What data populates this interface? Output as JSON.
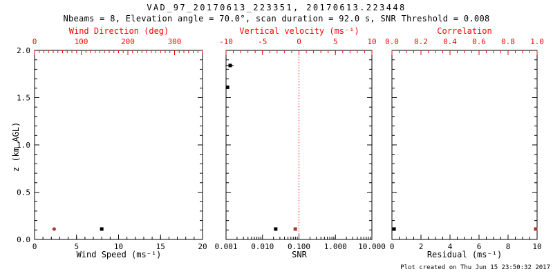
{
  "colors": {
    "axis_red": "#ff0000",
    "data_red": "#a93b2d",
    "black": "#000000",
    "background": "#ffffff"
  },
  "footer": {
    "created": "Plot created on Thu Jun 15 23:50:32 2017"
  },
  "chart_data": {
    "type": "scatter",
    "title": "VAD_97_20170613_223351, 20170613.223448",
    "subtitle": "Nbeams = 8, Elevation angle = 70.0°, scan duration = 92.0 s, SNR Threshold = 0.008",
    "ylabel": "z (km AGL)",
    "ylim": [
      0.0,
      2.0
    ],
    "yticks": [
      0.0,
      0.5,
      1.0,
      1.5,
      2.0
    ],
    "ytick_labels": [
      "0.0",
      "0.5",
      "1.0",
      "1.5",
      "2.0"
    ],
    "y_minor_step": 0.1,
    "grid": false,
    "legend": "none",
    "panels": [
      {
        "name": "wind",
        "bottom_axis": {
          "label": "Wind Speed (ms⁻¹)",
          "lim": [
            0,
            20
          ],
          "ticks": [
            0,
            5,
            10,
            15,
            20
          ],
          "minor_step": 1,
          "color": "#000000"
        },
        "top_axis": {
          "label": "Wind Direction (deg)",
          "lim": [
            0,
            360
          ],
          "ticks": [
            0,
            100,
            200,
            300
          ],
          "minor_step": 10,
          "color": "#ff0000"
        },
        "series": [
          {
            "name": "wind-speed",
            "axis": "bottom",
            "color": "#000000",
            "marker": "square",
            "points": [
              {
                "x": 8.0,
                "y": 0.11
              }
            ]
          },
          {
            "name": "wind-direction",
            "axis": "top",
            "color": "#a93b2d",
            "marker": "circle",
            "points": [
              {
                "x": 42,
                "y": 0.11
              }
            ]
          }
        ]
      },
      {
        "name": "snr",
        "bottom_axis": {
          "label": "SNR",
          "lim": [
            0.001,
            10.0
          ],
          "scale": "log",
          "ticks": [
            0.001,
            0.01,
            0.1,
            1.0,
            10.0
          ],
          "tick_labels": [
            "0.001",
            "0.010",
            "0.100",
            "1.000",
            "10.000"
          ],
          "color": "#000000"
        },
        "top_axis": {
          "label": "Vertical velocity (ms⁻¹)",
          "lim": [
            -10,
            10
          ],
          "ticks": [
            -10,
            -5,
            0,
            5,
            10
          ],
          "minor_step": 1,
          "color": "#ff0000"
        },
        "ref_line": {
          "axis": "top",
          "x": 0,
          "style": "dotted",
          "color": "#ff0000"
        },
        "series": [
          {
            "name": "snr",
            "axis": "bottom",
            "color": "#000000",
            "marker": "square",
            "points": [
              {
                "x": 0.0013,
                "y": 1.84,
                "bar": [
                  0.001,
                  0.0016
                ]
              },
              {
                "x": 0.0011,
                "y": 1.61
              },
              {
                "x": 0.023,
                "y": 0.11
              }
            ]
          },
          {
            "name": "vertical-velocity",
            "axis": "top",
            "color": "#a93b2d",
            "marker": "square",
            "points": [
              {
                "x": -0.5,
                "y": 0.11
              }
            ]
          }
        ]
      },
      {
        "name": "residual",
        "bottom_axis": {
          "label": "Residual (ms⁻¹)",
          "lim": [
            0,
            10
          ],
          "ticks": [
            0,
            2,
            4,
            6,
            8,
            10
          ],
          "minor_step": 0.5,
          "color": "#000000"
        },
        "top_axis": {
          "label": "Correlation",
          "lim": [
            0.0,
            1.0
          ],
          "ticks": [
            0.0,
            0.2,
            0.4,
            0.6,
            0.8,
            1.0
          ],
          "tick_labels": [
            "0.0",
            "0.2",
            "0.4",
            "0.6",
            "0.8",
            "1.0"
          ],
          "minor_step": 0.05,
          "color": "#ff0000"
        },
        "series": [
          {
            "name": "residual",
            "axis": "bottom",
            "color": "#000000",
            "marker": "square",
            "points": [
              {
                "x": 0.15,
                "y": 0.11
              }
            ]
          },
          {
            "name": "correlation",
            "axis": "top",
            "color": "#a93b2d",
            "marker": "square",
            "points": [
              {
                "x": 0.99,
                "y": 0.11
              }
            ]
          }
        ]
      }
    ]
  }
}
